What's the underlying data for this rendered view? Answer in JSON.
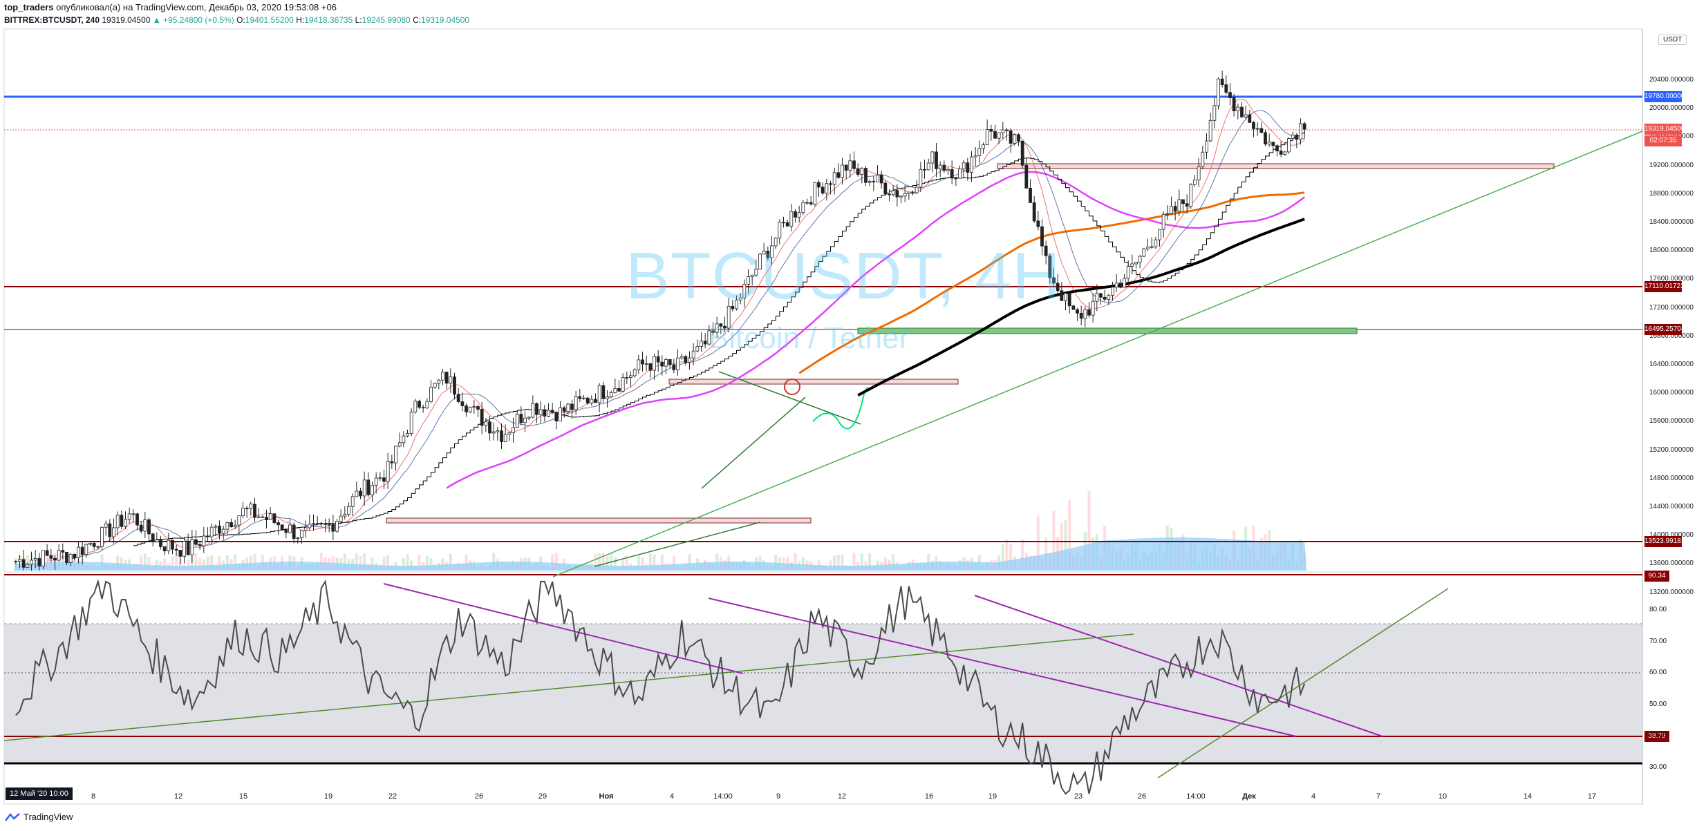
{
  "header": {
    "author": "top_traders",
    "published_text": "опубликовал(а) на TradingView.com, Декабрь 03, 2020 19:53:08 +06",
    "ticker": "BITTREX:BTCUSDT, 240",
    "last_price": "19319.04500",
    "change": "▲ +95.24800 (+0.5%)",
    "open_label": "O:",
    "open": "19401.55200",
    "high_label": "H:",
    "high": "19418.36735",
    "low_label": "L:",
    "low": "19245.99080",
    "close_label": "C:",
    "close": "19319.04500"
  },
  "watermark": {
    "symbol": "BTCUSDT, 4H",
    "name": "Bitcoin / Tether"
  },
  "price_axis": {
    "unit": "USDT",
    "ticks": [
      "20400.000000",
      "20000.000000",
      "19600.000000",
      "19200.000000",
      "18800.000000",
      "18400.000000",
      "18000.000000",
      "17600.000000",
      "17200.000000",
      "16800.000000",
      "16400.000000",
      "16000.000000",
      "15600.000000",
      "15200.000000",
      "14800.000000",
      "14400.000000",
      "14000.000000",
      "13600.000000",
      "13200.000000"
    ],
    "labels": {
      "resistance_blue": "19780.00000",
      "last": "19319.04500",
      "countdown": "02:07:35",
      "level1": "17110.01723",
      "level2": "16495.25704",
      "level3": "13523.99181"
    },
    "colors": {
      "blue": "#2962ff",
      "red_last": "#ef5350",
      "dark_red": "#8b0000"
    }
  },
  "oscillator": {
    "ticks": [
      "80.00",
      "70.00",
      "60.00",
      "50.00",
      "40.00",
      "30.00"
    ],
    "labels": {
      "top": "90.34",
      "level": "38.79"
    }
  },
  "time_axis": {
    "badge": "12 Май '20   10:00",
    "ticks": [
      {
        "t": "8",
        "b": false
      },
      {
        "t": "12",
        "b": false
      },
      {
        "t": "15",
        "b": false
      },
      {
        "t": "19",
        "b": false
      },
      {
        "t": "22",
        "b": false
      },
      {
        "t": "26",
        "b": false
      },
      {
        "t": "29",
        "b": false
      },
      {
        "t": "Ноя",
        "b": true
      },
      {
        "t": "4",
        "b": false
      },
      {
        "t": "14:00",
        "b": false
      },
      {
        "t": "9",
        "b": false
      },
      {
        "t": "12",
        "b": false
      },
      {
        "t": "16",
        "b": false
      },
      {
        "t": "19",
        "b": false
      },
      {
        "t": "23",
        "b": false
      },
      {
        "t": "26",
        "b": false
      },
      {
        "t": "14:00",
        "b": false
      },
      {
        "t": "Дек",
        "b": true
      },
      {
        "t": "4",
        "b": false
      },
      {
        "t": "7",
        "b": false
      },
      {
        "t": "10",
        "b": false
      },
      {
        "t": "14",
        "b": false
      },
      {
        "t": "17",
        "b": false
      }
    ]
  },
  "branding": {
    "logo_text": "TradingView"
  },
  "chart_data": {
    "type": "candlestick",
    "symbol": "BITTREX:BTCUSDT",
    "interval": "240",
    "ylim": [
      13100,
      20600
    ],
    "close_path_approx": [
      13250,
      13300,
      13350,
      13600,
      13900,
      13500,
      13400,
      13700,
      13950,
      13800,
      13600,
      13750,
      14200,
      14500,
      15400,
      15800,
      15300,
      15000,
      15400,
      15300,
      15500,
      15700,
      16000,
      15900,
      16200,
      16700,
      17400,
      18000,
      18400,
      18700,
      18500,
      18300,
      18800,
      18600,
      19200,
      19000,
      17300,
      16600,
      16900,
      17300,
      17900,
      18300,
      19800,
      19400,
      18900,
      19319
    ],
    "horizontal_levels": [
      19780,
      17110.01723,
      16495.25704,
      13523.99181
    ],
    "oscillator_ylim": [
      25,
      92
    ]
  }
}
